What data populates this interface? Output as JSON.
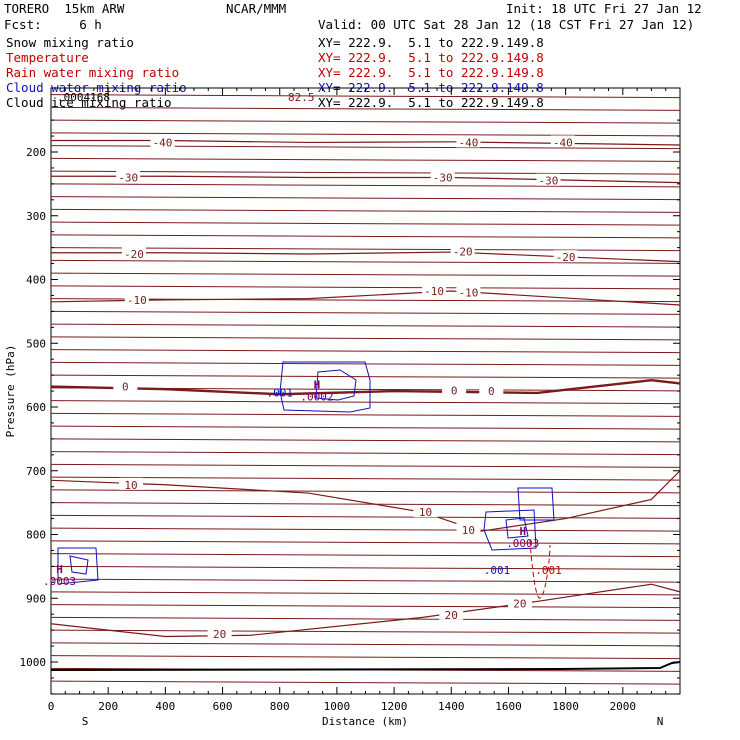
{
  "header": {
    "model": "TORERO  15km ARW",
    "org": "NCAR/MMM",
    "init": "Init: 18 UTC Fri 27 Jan 12",
    "fcst": "Fcst:     6 h",
    "valid": "Valid: 00 UTC Sat 28 Jan 12 (18 CST Fri 27 Jan 12)"
  },
  "legend": [
    {
      "name": "Snow mixing ratio",
      "xy": "XY= 222.9.  5.1 to 222.9.149.8",
      "name_color": "#000000",
      "xy_color": "#000000"
    },
    {
      "name": "Temperature",
      "xy": "XY= 222.9.  5.1 to 222.9.149.8",
      "name_color": "#c00000",
      "xy_color": "#c00000"
    },
    {
      "name": "Rain water mixing ratio",
      "xy": "XY= 222.9.  5.1 to 222.9.149.8",
      "name_color": "#c00000",
      "xy_color": "#c00000"
    },
    {
      "name": "Cloud water mixing ratio",
      "xy": "XY= 222.9.  5.1 to 222.9.149.8",
      "name_color": "#1010c0",
      "xy_color": "#1010c0"
    },
    {
      "name": "Cloud ice mixing ratio",
      "xy": "XY= 222.9.  5.1 to 222.9.149.8",
      "name_color": "#000000",
      "xy_color": "#000000"
    }
  ],
  "chart_data": {
    "type": "contour",
    "xlabel": "Distance (km)",
    "ylabel": "Pressure (hPa)",
    "xlim": [
      0,
      2200
    ],
    "ylim": [
      1050,
      100
    ],
    "x_ticks": [
      0,
      200,
      400,
      600,
      800,
      1000,
      1200,
      1400,
      1600,
      1800,
      2000
    ],
    "y_ticks": [
      200,
      300,
      400,
      500,
      600,
      700,
      800,
      900,
      1000
    ],
    "endpoints": {
      "left": "S",
      "right": "N"
    },
    "temperature_contours": [
      {
        "label": "-40",
        "label_positions": [
          [
            390,
            185
          ],
          [
            1460,
            185
          ],
          [
            1790,
            185
          ]
        ],
        "points": [
          [
            0,
            182
          ],
          [
            400,
            182
          ],
          [
            900,
            185
          ],
          [
            1400,
            184
          ],
          [
            2200,
            189
          ]
        ]
      },
      {
        "label": "-30",
        "label_positions": [
          [
            270,
            240
          ],
          [
            1370,
            240
          ],
          [
            1740,
            245
          ]
        ],
        "points": [
          [
            0,
            238
          ],
          [
            400,
            238
          ],
          [
            900,
            240
          ],
          [
            1400,
            240
          ],
          [
            2200,
            248
          ]
        ]
      },
      {
        "label": "-20",
        "label_positions": [
          [
            290,
            360
          ],
          [
            1440,
            356
          ],
          [
            1800,
            365
          ]
        ],
        "points": [
          [
            0,
            358
          ],
          [
            400,
            358
          ],
          [
            900,
            360
          ],
          [
            1400,
            357
          ],
          [
            2200,
            372
          ]
        ]
      },
      {
        "label": "-10",
        "label_positions": [
          [
            300,
            432
          ],
          [
            1340,
            418
          ],
          [
            1460,
            420
          ]
        ],
        "points": [
          [
            0,
            435
          ],
          [
            400,
            432
          ],
          [
            900,
            430
          ],
          [
            1400,
            418
          ],
          [
            2200,
            440
          ]
        ]
      },
      {
        "label": "0",
        "label_positions": [
          [
            260,
            568
          ],
          [
            1410,
            574
          ],
          [
            1540,
            575
          ]
        ],
        "points": [
          [
            0,
            568
          ],
          [
            400,
            572
          ],
          [
            800,
            580
          ],
          [
            1200,
            575
          ],
          [
            1700,
            578
          ],
          [
            2100,
            558
          ],
          [
            2200,
            563
          ]
        ]
      },
      {
        "label": "10",
        "label_positions": [
          [
            280,
            722
          ],
          [
            1310,
            765
          ],
          [
            1460,
            793
          ]
        ],
        "points": [
          [
            0,
            715
          ],
          [
            400,
            722
          ],
          [
            900,
            735
          ],
          [
            1300,
            765
          ],
          [
            1500,
            795
          ],
          [
            1800,
            775
          ],
          [
            2100,
            745
          ],
          [
            2200,
            700
          ]
        ]
      },
      {
        "label": "20",
        "label_positions": [
          [
            590,
            956
          ],
          [
            1400,
            926
          ],
          [
            1640,
            908
          ]
        ],
        "points": [
          [
            0,
            940
          ],
          [
            400,
            960
          ],
          [
            700,
            958
          ],
          [
            1300,
            930
          ],
          [
            1700,
            905
          ],
          [
            2100,
            878
          ],
          [
            2200,
            890
          ]
        ]
      }
    ],
    "cloud_water": [
      {
        "label": ".001",
        "label_positions": [
          [
            800,
            577
          ],
          [
            1560,
            856
          ]
        ]
      }
    ],
    "rain_water": [
      {
        "label": ".001",
        "label_positions": [
          [
            1740,
            856
          ]
        ]
      }
    ],
    "extrema": [
      {
        "marker": "H",
        "value": ".0002",
        "x": 930,
        "p": 580
      },
      {
        "marker": "H",
        "value": ".0003",
        "x": 30,
        "p": 870
      },
      {
        "marker": "H",
        "value": ".0003",
        "x": 1650,
        "p": 810
      }
    ],
    "top_labels": [
      ".0004168",
      "82.5"
    ]
  }
}
